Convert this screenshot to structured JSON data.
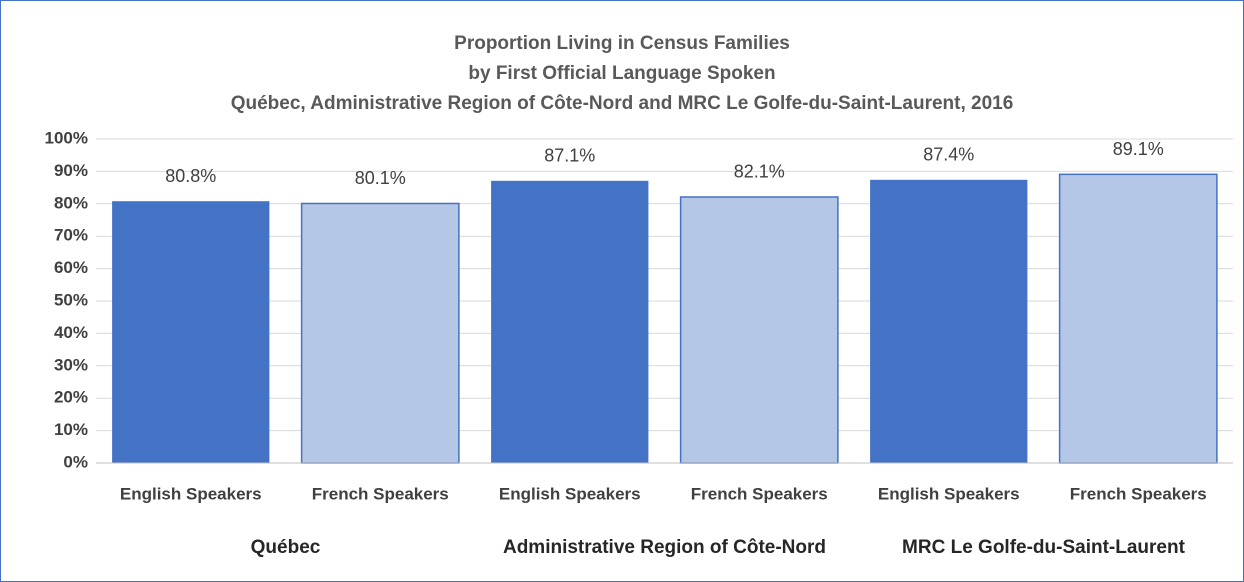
{
  "chart_data": {
    "type": "bar",
    "title": [
      "Proportion Living in Census Families",
      "by First Official Language Spoken",
      "Québec, Administrative Region of Côte-Nord and MRC Le Golfe-du-Saint-Laurent, 2016"
    ],
    "categories": [
      "Québec",
      "Administrative Region of Côte-Nord",
      "MRC Le Golfe-du-Saint-Laurent"
    ],
    "series": [
      {
        "name": "English Speakers",
        "color": "#4472c4",
        "values": [
          80.8,
          87.1,
          87.4
        ],
        "value_labels": [
          "80.8%",
          "87.1%",
          "87.4%"
        ]
      },
      {
        "name": "French Speakers",
        "color": "#b4c7e7",
        "values": [
          80.1,
          82.1,
          89.1
        ],
        "value_labels": [
          "80.1%",
          "82.1%",
          "89.1%"
        ]
      }
    ],
    "ylim": [
      0,
      100
    ],
    "yticks": [
      {
        "value": 0,
        "label": "0%"
      },
      {
        "value": 10,
        "label": "10%"
      },
      {
        "value": 20,
        "label": "20%"
      },
      {
        "value": 30,
        "label": "30%"
      },
      {
        "value": 40,
        "label": "40%"
      },
      {
        "value": 50,
        "label": "50%"
      },
      {
        "value": 60,
        "label": "60%"
      },
      {
        "value": 70,
        "label": "70%"
      },
      {
        "value": 80,
        "label": "80%"
      },
      {
        "value": 90,
        "label": "90%"
      },
      {
        "value": 100,
        "label": "100%"
      }
    ],
    "grid": true
  }
}
